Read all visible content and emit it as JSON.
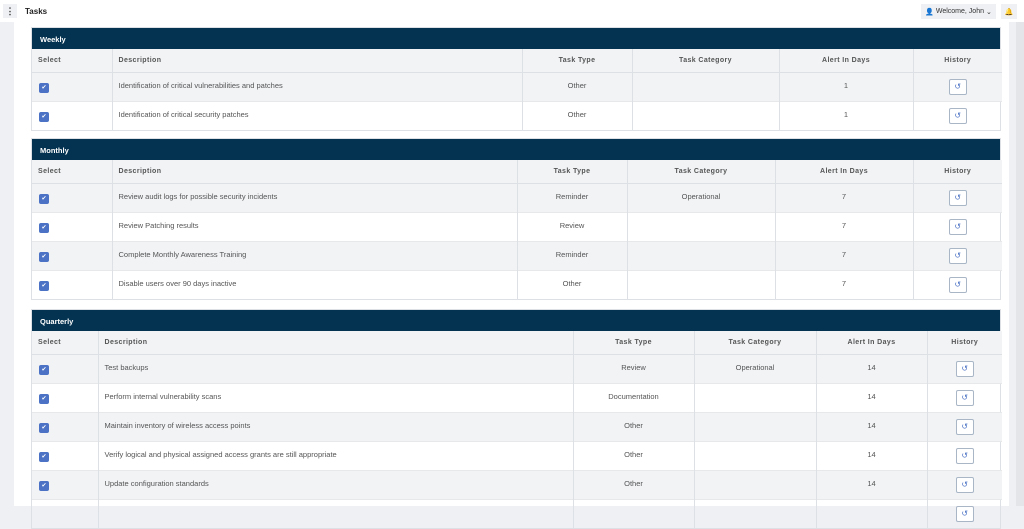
{
  "header": {
    "menu_icon": "kebab-icon",
    "title": "Tasks",
    "welcome": "Welcome, John",
    "user_icon": "user-icon",
    "bell_icon": "bell-icon"
  },
  "columns": {
    "select": "Select",
    "description": "Description",
    "task_type": "Task Type",
    "task_category": "Task Category",
    "alert_in_days": "Alert In Days",
    "history": "History"
  },
  "sections": [
    {
      "title": "Weekly",
      "rows": [
        {
          "checked": true,
          "description": "Identification of critical vulnerabilities and patches",
          "task_type": "Other",
          "task_category": "",
          "alert_in_days": "1"
        },
        {
          "checked": true,
          "description": "Identification of critical security patches",
          "task_type": "Other",
          "task_category": "",
          "alert_in_days": "1"
        }
      ]
    },
    {
      "title": "Monthly",
      "rows": [
        {
          "checked": true,
          "description": "Review audit logs for possible security incidents",
          "task_type": "Reminder",
          "task_category": "Operational",
          "alert_in_days": "7"
        },
        {
          "checked": true,
          "description": "Review Patching results",
          "task_type": "Review",
          "task_category": "",
          "alert_in_days": "7"
        },
        {
          "checked": true,
          "description": "Complete Monthly Awareness Training",
          "task_type": "Reminder",
          "task_category": "",
          "alert_in_days": "7"
        },
        {
          "checked": true,
          "description": "Disable users over 90 days inactive",
          "task_type": "Other",
          "task_category": "",
          "alert_in_days": "7"
        }
      ]
    },
    {
      "title": "Quarterly",
      "rows": [
        {
          "checked": true,
          "description": "Test backups",
          "task_type": "Review",
          "task_category": "Operational",
          "alert_in_days": "14"
        },
        {
          "checked": true,
          "description": "Perform internal vulnerability scans",
          "task_type": "Documentation",
          "task_category": "",
          "alert_in_days": "14"
        },
        {
          "checked": true,
          "description": "Maintain inventory of wireless access points",
          "task_type": "Other",
          "task_category": "",
          "alert_in_days": "14"
        },
        {
          "checked": true,
          "description": "Verify logical and physical assigned access grants are still appropriate",
          "task_type": "Other",
          "task_category": "",
          "alert_in_days": "14"
        },
        {
          "checked": true,
          "description": "Update configuration standards",
          "task_type": "Other",
          "task_category": "",
          "alert_in_days": "14"
        }
      ]
    }
  ],
  "colors": {
    "section_header": "#043351",
    "checkbox": "#4b72c4"
  }
}
